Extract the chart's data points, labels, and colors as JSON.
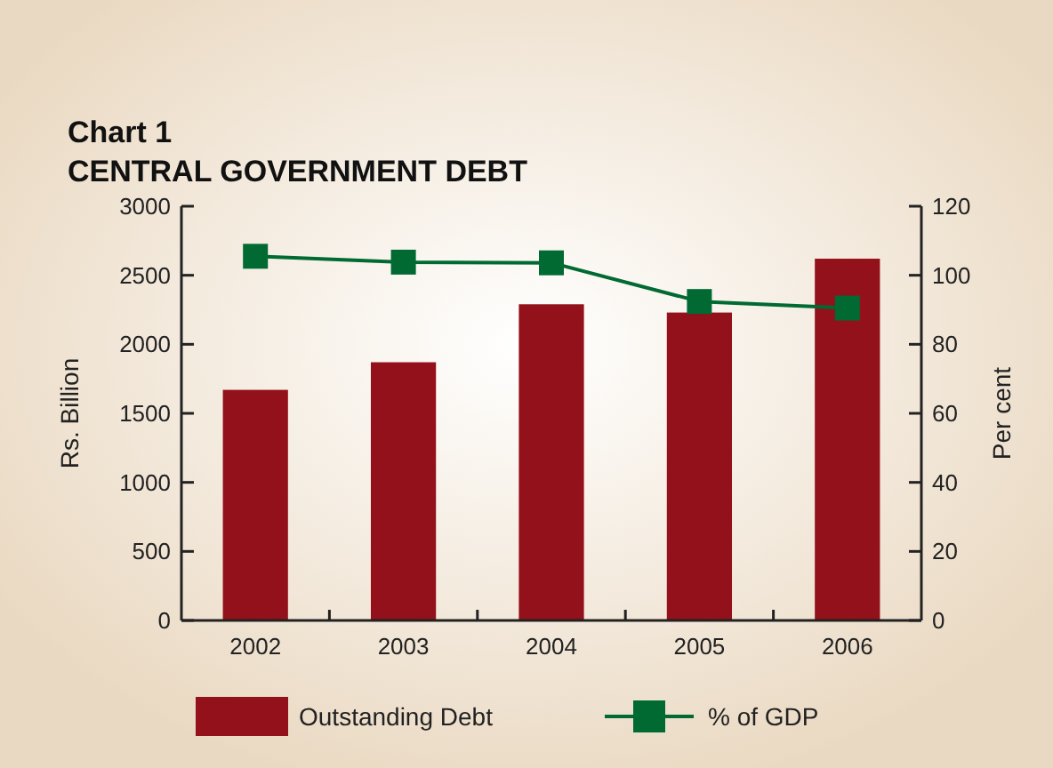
{
  "chart_data": {
    "type": "bar",
    "title": "Chart 1",
    "subtitle": "CENTRAL GOVERNMENT DEBT",
    "ylabel": "Rs. Billion",
    "y2label": "Per cent",
    "categories": [
      "2002",
      "2003",
      "2004",
      "2005",
      "2006"
    ],
    "series": [
      {
        "name": "Outstanding Debt",
        "color": "#93111a",
        "values": [
          1670,
          1870,
          2290,
          2230,
          2620
        ]
      },
      {
        "name": "% of GDP",
        "type": "line",
        "axis": "y2",
        "color": "#006a32",
        "marker": "square",
        "values": [
          105.5,
          103.8,
          103.6,
          92.4,
          90.5
        ]
      }
    ],
    "ylim": [
      0,
      3000
    ],
    "yticks": [
      0,
      500,
      1000,
      1500,
      2000,
      2500,
      3000
    ],
    "y2lim": [
      0,
      120
    ],
    "y2ticks": [
      0,
      20,
      40,
      60,
      80,
      100,
      120
    ],
    "grid": false,
    "legend": "bottom"
  }
}
